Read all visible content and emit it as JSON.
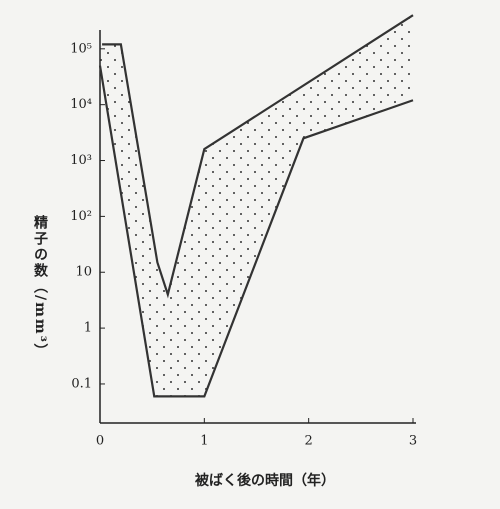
{
  "chart_data": {
    "type": "line",
    "x_label": "被ばく後の時間（年）",
    "y_label": "精子の数（/mm³）",
    "series": [
      {
        "color": "#333333",
        "x": [
          0.02,
          0.2,
          0.55,
          0.65,
          1.0,
          3.0
        ],
        "values": [
          120000,
          120000,
          15,
          4,
          1600,
          400000
        ]
      },
      {
        "color": "#333333",
        "x": [
          0.0,
          0.52,
          1.0,
          1.95,
          3.0
        ],
        "values": [
          50000,
          0.06,
          0.06,
          2500,
          12000
        ]
      }
    ],
    "xlim": [
      0,
      3
    ],
    "xticks": [
      0,
      1,
      2,
      3
    ],
    "ylim": [
      0.02,
      200000
    ],
    "log_y": true,
    "yticks": [
      {
        "value": 100000,
        "label": "10⁵"
      },
      {
        "value": 10000,
        "label": "10⁴"
      },
      {
        "value": 1000,
        "label": "10³"
      },
      {
        "value": 100,
        "label": "10²"
      },
      10,
      1,
      0.1
    ]
  }
}
